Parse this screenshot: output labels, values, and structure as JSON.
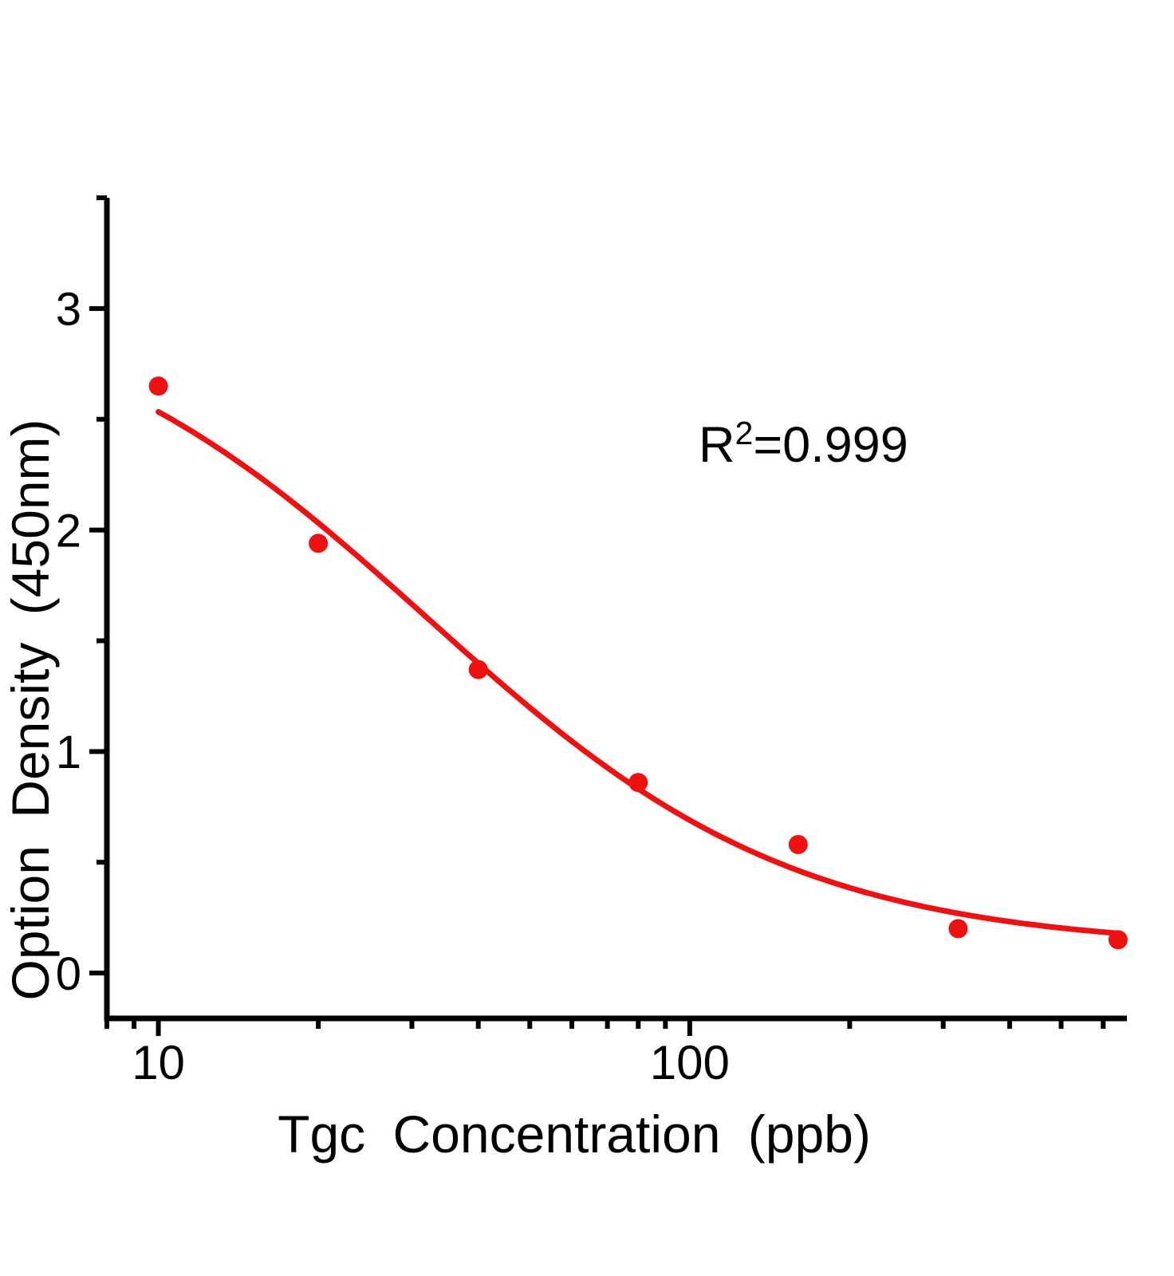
{
  "chart_data": {
    "type": "scatter",
    "title": "",
    "xlabel": "Tgc Concentration (ppb)",
    "ylabel": "Option Density (450nm)",
    "x_scale": "log",
    "y_scale": "linear",
    "xlim": [
      8,
      665
    ],
    "ylim": [
      -0.205,
      3.5
    ],
    "grid": false,
    "legend_visible": false,
    "axis_color": "#000000",
    "x_ticks_major": [
      {
        "value": 10,
        "label": "10"
      },
      {
        "value": 100,
        "label": "100"
      }
    ],
    "x_ticks_minor": [
      8,
      9,
      20,
      30,
      40,
      50,
      60,
      70,
      80,
      90,
      200,
      300,
      400,
      500,
      600
    ],
    "y_ticks_major": [
      {
        "value": 0,
        "label": "0"
      },
      {
        "value": 1,
        "label": "1"
      },
      {
        "value": 2,
        "label": "2"
      },
      {
        "value": 3,
        "label": "3"
      }
    ],
    "y_ticks_minor": [
      0.5,
      1.5,
      2.5,
      3.5
    ],
    "series": [
      {
        "type": "scatter",
        "x": [
          10,
          20,
          40,
          80,
          160,
          320,
          640
        ],
        "y": [
          2.65,
          1.94,
          1.37,
          0.86,
          0.58,
          0.2,
          0.15
        ],
        "color": "#ee1111",
        "marker": "circle",
        "marker_radius": 12
      }
    ],
    "fit_curve": {
      "model": "4PL",
      "equation": "y = d + (a - d) / (1 + (x/c)^b)",
      "params": {
        "a": 3.1,
        "b": 1.25,
        "c": 32,
        "d": 0.11
      },
      "x_range": [
        10,
        640
      ],
      "color": "#ee1111",
      "stroke_width": 7
    },
    "annotation": {
      "base": "R",
      "sup": "2",
      "rest": "=0.999",
      "r_squared": 0.999
    }
  }
}
